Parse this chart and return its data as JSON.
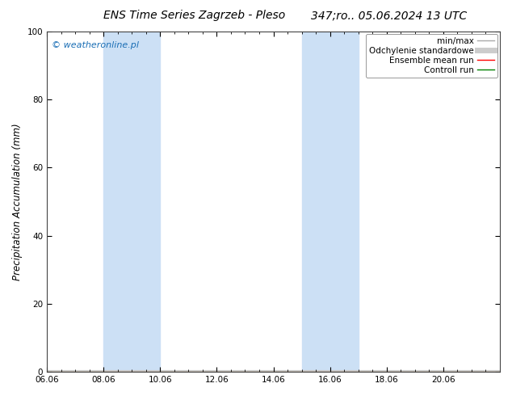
{
  "title_left": "ENS Time Series Zagrzeb - Pleso",
  "title_right": "347;ro.. 05.06.2024 13 UTC",
  "ylabel": "Precipitation Accumulation (mm)",
  "ylim": [
    0,
    100
  ],
  "background_color": "#ffffff",
  "plot_bg_color": "#ffffff",
  "watermark": "© weatheronline.pl",
  "watermark_color": "#1a6eb5",
  "x_tick_labels": [
    "06.06",
    "08.06",
    "10.06",
    "12.06",
    "14.06",
    "16.06",
    "18.06",
    "20.06"
  ],
  "x_tick_positions": [
    0,
    2,
    4,
    6,
    8,
    10,
    12,
    14
  ],
  "shade_regions": [
    {
      "start": 2,
      "end": 4,
      "color": "#cce0f5",
      "alpha": 1.0
    },
    {
      "start": 9,
      "end": 11,
      "color": "#cce0f5",
      "alpha": 1.0
    }
  ],
  "title_fontsize": 10,
  "tick_fontsize": 7.5,
  "ylabel_fontsize": 8.5,
  "watermark_fontsize": 8,
  "yticks": [
    0,
    20,
    40,
    60,
    80,
    100
  ],
  "n_days": 16,
  "legend_fontsize": 7.5
}
